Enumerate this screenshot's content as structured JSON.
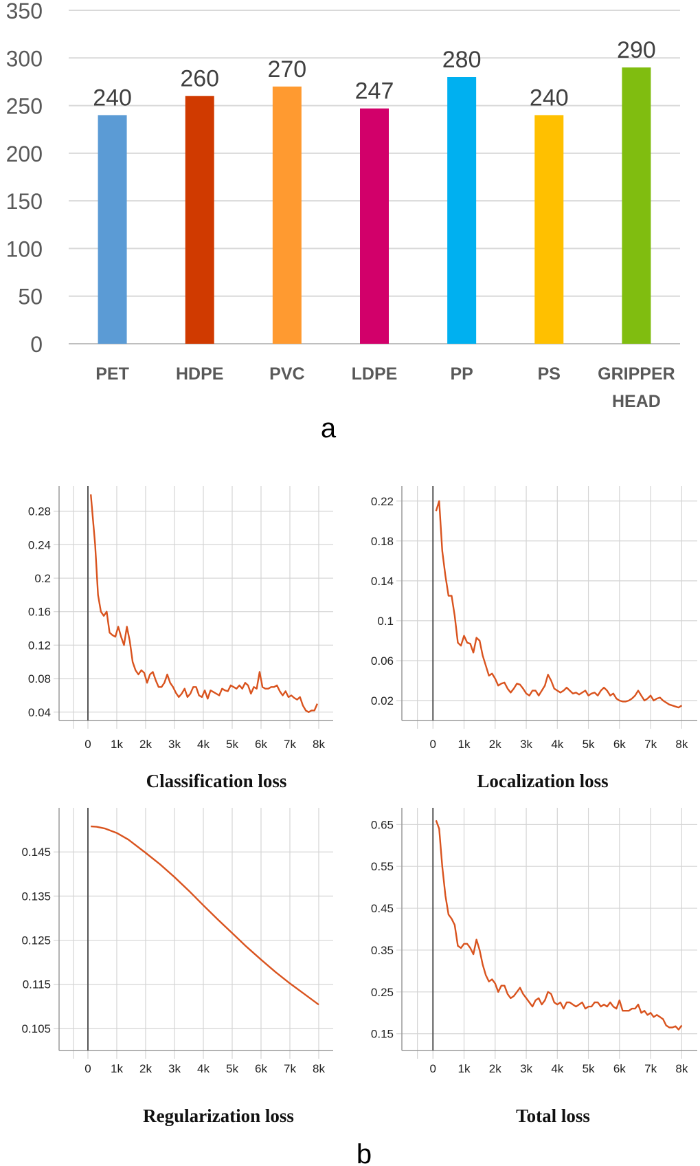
{
  "panel_labels": {
    "a": "a",
    "b": "b"
  },
  "chart_data": [
    {
      "id": "bar",
      "type": "bar",
      "title": "",
      "xlabel": "",
      "ylabel": "",
      "ylim": [
        0,
        350
      ],
      "yticks": [
        0,
        50,
        100,
        150,
        200,
        250,
        300,
        350
      ],
      "categories": [
        [
          "PET"
        ],
        [
          "HDPE"
        ],
        [
          "PVC"
        ],
        [
          "LDPE"
        ],
        [
          "PP"
        ],
        [
          "PS"
        ],
        [
          "GRIPPER",
          "HEAD"
        ]
      ],
      "values": [
        240,
        260,
        270,
        247,
        280,
        240,
        290
      ],
      "colors": [
        "#5b9bd5",
        "#d03a00",
        "#ff9a30",
        "#d2006a",
        "#00b0f0",
        "#ffc000",
        "#80bd10"
      ],
      "grid": true
    },
    {
      "id": "cls",
      "type": "line",
      "title": "Classification loss",
      "xlim": [
        -1000,
        8500
      ],
      "ylim": [
        0.03,
        0.31
      ],
      "yticks": [
        0.04,
        0.08,
        0.12,
        0.16,
        0.2,
        0.24,
        0.28
      ],
      "ytick_labels": [
        "0.04",
        "0.08",
        "0.12",
        "0.16",
        "0.2",
        "0.24",
        "0.28"
      ],
      "xticks": [
        0,
        1000,
        2000,
        3000,
        4000,
        5000,
        6000,
        7000,
        8000
      ],
      "xtick_labels": [
        "0",
        "1k",
        "2k",
        "3k",
        "4k",
        "5k",
        "6k",
        "7k",
        "8k"
      ],
      "color": "#d9531e",
      "x": [
        100,
        250,
        350,
        450,
        550,
        650,
        750,
        850,
        950,
        1050,
        1150,
        1250,
        1350,
        1450,
        1550,
        1650,
        1750,
        1850,
        1950,
        2050,
        2150,
        2250,
        2350,
        2450,
        2550,
        2650,
        2750,
        2850,
        2950,
        3050,
        3150,
        3250,
        3350,
        3450,
        3550,
        3650,
        3750,
        3850,
        3950,
        4050,
        4150,
        4250,
        4350,
        4450,
        4550,
        4650,
        4750,
        4850,
        4950,
        5050,
        5150,
        5250,
        5350,
        5450,
        5550,
        5650,
        5750,
        5850,
        5950,
        6050,
        6150,
        6250,
        6350,
        6450,
        6550,
        6650,
        6750,
        6850,
        6950,
        7050,
        7150,
        7250,
        7350,
        7450,
        7550,
        7650,
        7750,
        7850,
        7950
      ],
      "y": [
        0.3,
        0.24,
        0.18,
        0.16,
        0.155,
        0.16,
        0.135,
        0.132,
        0.13,
        0.142,
        0.13,
        0.12,
        0.142,
        0.125,
        0.1,
        0.09,
        0.085,
        0.09,
        0.087,
        0.075,
        0.085,
        0.088,
        0.078,
        0.07,
        0.07,
        0.075,
        0.085,
        0.075,
        0.07,
        0.063,
        0.058,
        0.062,
        0.068,
        0.058,
        0.062,
        0.07,
        0.07,
        0.06,
        0.058,
        0.066,
        0.056,
        0.066,
        0.064,
        0.062,
        0.06,
        0.068,
        0.066,
        0.065,
        0.072,
        0.07,
        0.068,
        0.072,
        0.068,
        0.075,
        0.072,
        0.062,
        0.07,
        0.068,
        0.088,
        0.07,
        0.068,
        0.068,
        0.07,
        0.07,
        0.072,
        0.065,
        0.06,
        0.065,
        0.058,
        0.06,
        0.057,
        0.055,
        0.058,
        0.048,
        0.042,
        0.04,
        0.042,
        0.042,
        0.05
      ]
    },
    {
      "id": "loc",
      "type": "line",
      "title": "Localization loss",
      "xlim": [
        -1000,
        8500
      ],
      "ylim": [
        0.0,
        0.235
      ],
      "yticks": [
        0.02,
        0.06,
        0.1,
        0.14,
        0.18,
        0.22
      ],
      "ytick_labels": [
        "0.02",
        "0.06",
        "0.1",
        "0.14",
        "0.18",
        "0.22"
      ],
      "xticks": [
        0,
        1000,
        2000,
        3000,
        4000,
        5000,
        6000,
        7000,
        8000
      ],
      "xtick_labels": [
        "0",
        "1k",
        "2k",
        "3k",
        "4k",
        "5k",
        "6k",
        "7k",
        "8k"
      ],
      "color": "#d9531e",
      "x": [
        100,
        200,
        300,
        400,
        500,
        600,
        700,
        800,
        900,
        1000,
        1100,
        1200,
        1300,
        1400,
        1500,
        1600,
        1700,
        1800,
        1900,
        2000,
        2100,
        2200,
        2300,
        2400,
        2500,
        2600,
        2700,
        2800,
        2900,
        3000,
        3100,
        3200,
        3300,
        3400,
        3500,
        3600,
        3700,
        3800,
        3900,
        4000,
        4100,
        4200,
        4300,
        4400,
        4500,
        4600,
        4700,
        4800,
        4900,
        5000,
        5100,
        5200,
        5300,
        5400,
        5500,
        5600,
        5700,
        5800,
        5900,
        6000,
        6100,
        6200,
        6300,
        6400,
        6500,
        6600,
        6700,
        6800,
        6900,
        7000,
        7100,
        7200,
        7300,
        7400,
        7500,
        7600,
        7700,
        7800,
        7900,
        8000
      ],
      "y": [
        0.21,
        0.22,
        0.17,
        0.145,
        0.125,
        0.125,
        0.105,
        0.078,
        0.075,
        0.085,
        0.078,
        0.077,
        0.068,
        0.083,
        0.08,
        0.065,
        0.055,
        0.045,
        0.047,
        0.042,
        0.035,
        0.037,
        0.038,
        0.032,
        0.028,
        0.032,
        0.037,
        0.036,
        0.032,
        0.027,
        0.025,
        0.03,
        0.03,
        0.025,
        0.03,
        0.035,
        0.046,
        0.04,
        0.032,
        0.03,
        0.028,
        0.03,
        0.033,
        0.03,
        0.027,
        0.028,
        0.026,
        0.028,
        0.03,
        0.025,
        0.027,
        0.028,
        0.025,
        0.03,
        0.033,
        0.03,
        0.025,
        0.027,
        0.022,
        0.02,
        0.019,
        0.019,
        0.02,
        0.022,
        0.025,
        0.03,
        0.025,
        0.02,
        0.022,
        0.025,
        0.02,
        0.022,
        0.023,
        0.02,
        0.018,
        0.016,
        0.015,
        0.014,
        0.013,
        0.015
      ]
    },
    {
      "id": "reg",
      "type": "line",
      "title": "Regularization loss",
      "xlim": [
        -1000,
        8500
      ],
      "ylim": [
        0.1,
        0.155
      ],
      "yticks": [
        0.105,
        0.115,
        0.125,
        0.135,
        0.145
      ],
      "ytick_labels": [
        "0.105",
        "0.115",
        "0.125",
        "0.135",
        "0.145"
      ],
      "xticks": [
        0,
        1000,
        2000,
        3000,
        4000,
        5000,
        6000,
        7000,
        8000
      ],
      "xtick_labels": [
        "0",
        "1k",
        "2k",
        "3k",
        "4k",
        "5k",
        "6k",
        "7k",
        "8k"
      ],
      "color": "#d9531e",
      "x": [
        100,
        300,
        600,
        1000,
        1400,
        2000,
        2500,
        3000,
        3500,
        4000,
        4500,
        5000,
        5500,
        6000,
        6500,
        7000,
        7500,
        8000
      ],
      "y": [
        0.1508,
        0.1507,
        0.1503,
        0.1493,
        0.1478,
        0.1448,
        0.1422,
        0.1393,
        0.1362,
        0.1329,
        0.1297,
        0.1266,
        0.1235,
        0.1206,
        0.1178,
        0.1152,
        0.1128,
        0.1104
      ]
    },
    {
      "id": "tot",
      "type": "line",
      "title": "Total loss",
      "xlim": [
        -1000,
        8500
      ],
      "ylim": [
        0.11,
        0.69
      ],
      "yticks": [
        0.15,
        0.25,
        0.35,
        0.45,
        0.55,
        0.65
      ],
      "ytick_labels": [
        "0.15",
        "0.25",
        "0.35",
        "0.45",
        "0.55",
        "0.65"
      ],
      "xticks": [
        0,
        1000,
        2000,
        3000,
        4000,
        5000,
        6000,
        7000,
        8000
      ],
      "xtick_labels": [
        "0",
        "1k",
        "2k",
        "3k",
        "4k",
        "5k",
        "6k",
        "7k",
        "8k"
      ],
      "color": "#d9531e",
      "x": [
        100,
        200,
        300,
        400,
        500,
        600,
        700,
        800,
        900,
        1000,
        1100,
        1200,
        1300,
        1400,
        1500,
        1600,
        1700,
        1800,
        1900,
        2000,
        2100,
        2200,
        2300,
        2400,
        2500,
        2600,
        2700,
        2800,
        2900,
        3000,
        3100,
        3200,
        3300,
        3400,
        3500,
        3600,
        3700,
        3800,
        3900,
        4000,
        4100,
        4200,
        4300,
        4400,
        4500,
        4600,
        4700,
        4800,
        4900,
        5000,
        5100,
        5200,
        5300,
        5400,
        5500,
        5600,
        5700,
        5800,
        5900,
        6000,
        6100,
        6200,
        6300,
        6400,
        6500,
        6600,
        6700,
        6800,
        6900,
        7000,
        7100,
        7200,
        7300,
        7400,
        7500,
        7600,
        7700,
        7800,
        7900,
        8000
      ],
      "y": [
        0.66,
        0.64,
        0.55,
        0.48,
        0.435,
        0.425,
        0.41,
        0.36,
        0.355,
        0.365,
        0.365,
        0.355,
        0.34,
        0.375,
        0.35,
        0.315,
        0.29,
        0.275,
        0.28,
        0.27,
        0.25,
        0.265,
        0.265,
        0.245,
        0.235,
        0.24,
        0.25,
        0.26,
        0.245,
        0.235,
        0.225,
        0.215,
        0.23,
        0.235,
        0.22,
        0.23,
        0.25,
        0.245,
        0.225,
        0.22,
        0.225,
        0.21,
        0.225,
        0.225,
        0.22,
        0.215,
        0.22,
        0.225,
        0.21,
        0.215,
        0.215,
        0.225,
        0.225,
        0.215,
        0.22,
        0.215,
        0.225,
        0.215,
        0.21,
        0.23,
        0.205,
        0.205,
        0.205,
        0.21,
        0.21,
        0.22,
        0.2,
        0.205,
        0.195,
        0.2,
        0.19,
        0.195,
        0.19,
        0.185,
        0.17,
        0.165,
        0.165,
        0.168,
        0.16,
        0.17
      ]
    }
  ]
}
